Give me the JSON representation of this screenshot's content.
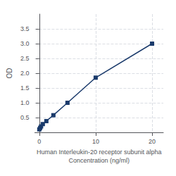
{
  "chart_data": {
    "type": "line",
    "xlabel": "Human Interleukin-20 receptor subunit alpha\nConcentration (ng/ml)",
    "ylabel": "OD",
    "x": [
      0,
      0.156,
      0.313,
      0.625,
      1.25,
      2.5,
      5,
      10,
      20
    ],
    "values": [
      0.1,
      0.15,
      0.2,
      0.28,
      0.38,
      0.58,
      1.0,
      1.85,
      3.0
    ],
    "color": "#1a3a6b",
    "marker": "square",
    "xlim": [
      -0.8,
      22
    ],
    "ylim": [
      0,
      4.0
    ],
    "xticks": [
      0,
      10,
      20
    ],
    "yticks": [
      0.5,
      {
        "value": 1.0,
        "label": "1.0"
      },
      1.5,
      {
        "value": 2.0,
        "label": "2.0"
      },
      2.5,
      {
        "value": 3.0,
        "label": "3.0"
      },
      3.5
    ],
    "grid": true
  }
}
